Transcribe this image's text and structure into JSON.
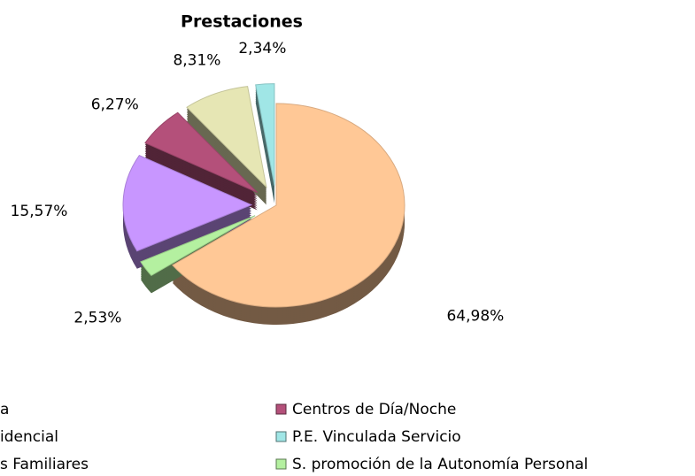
{
  "chart_data": {
    "type": "pie",
    "title": "Prestaciones",
    "categories": [
      "s Familiares",
      "S. promoción de la Autonomía Personal",
      "idencial",
      "Centros de Día/Noche",
      "a",
      "P.E. Vinculada Servicio"
    ],
    "values": [
      64.98,
      2.53,
      15.57,
      6.27,
      8.31,
      2.34
    ],
    "value_labels": [
      "64,98%",
      "2,53%",
      "15,57%",
      "6,27%",
      "8,31%",
      "2,34%"
    ],
    "colors": [
      "#ffc896",
      "#b4f0a0",
      "#c896ff",
      "#b4507a",
      "#e6e6b4",
      "#a0e6e6"
    ],
    "legend": "bottom"
  }
}
